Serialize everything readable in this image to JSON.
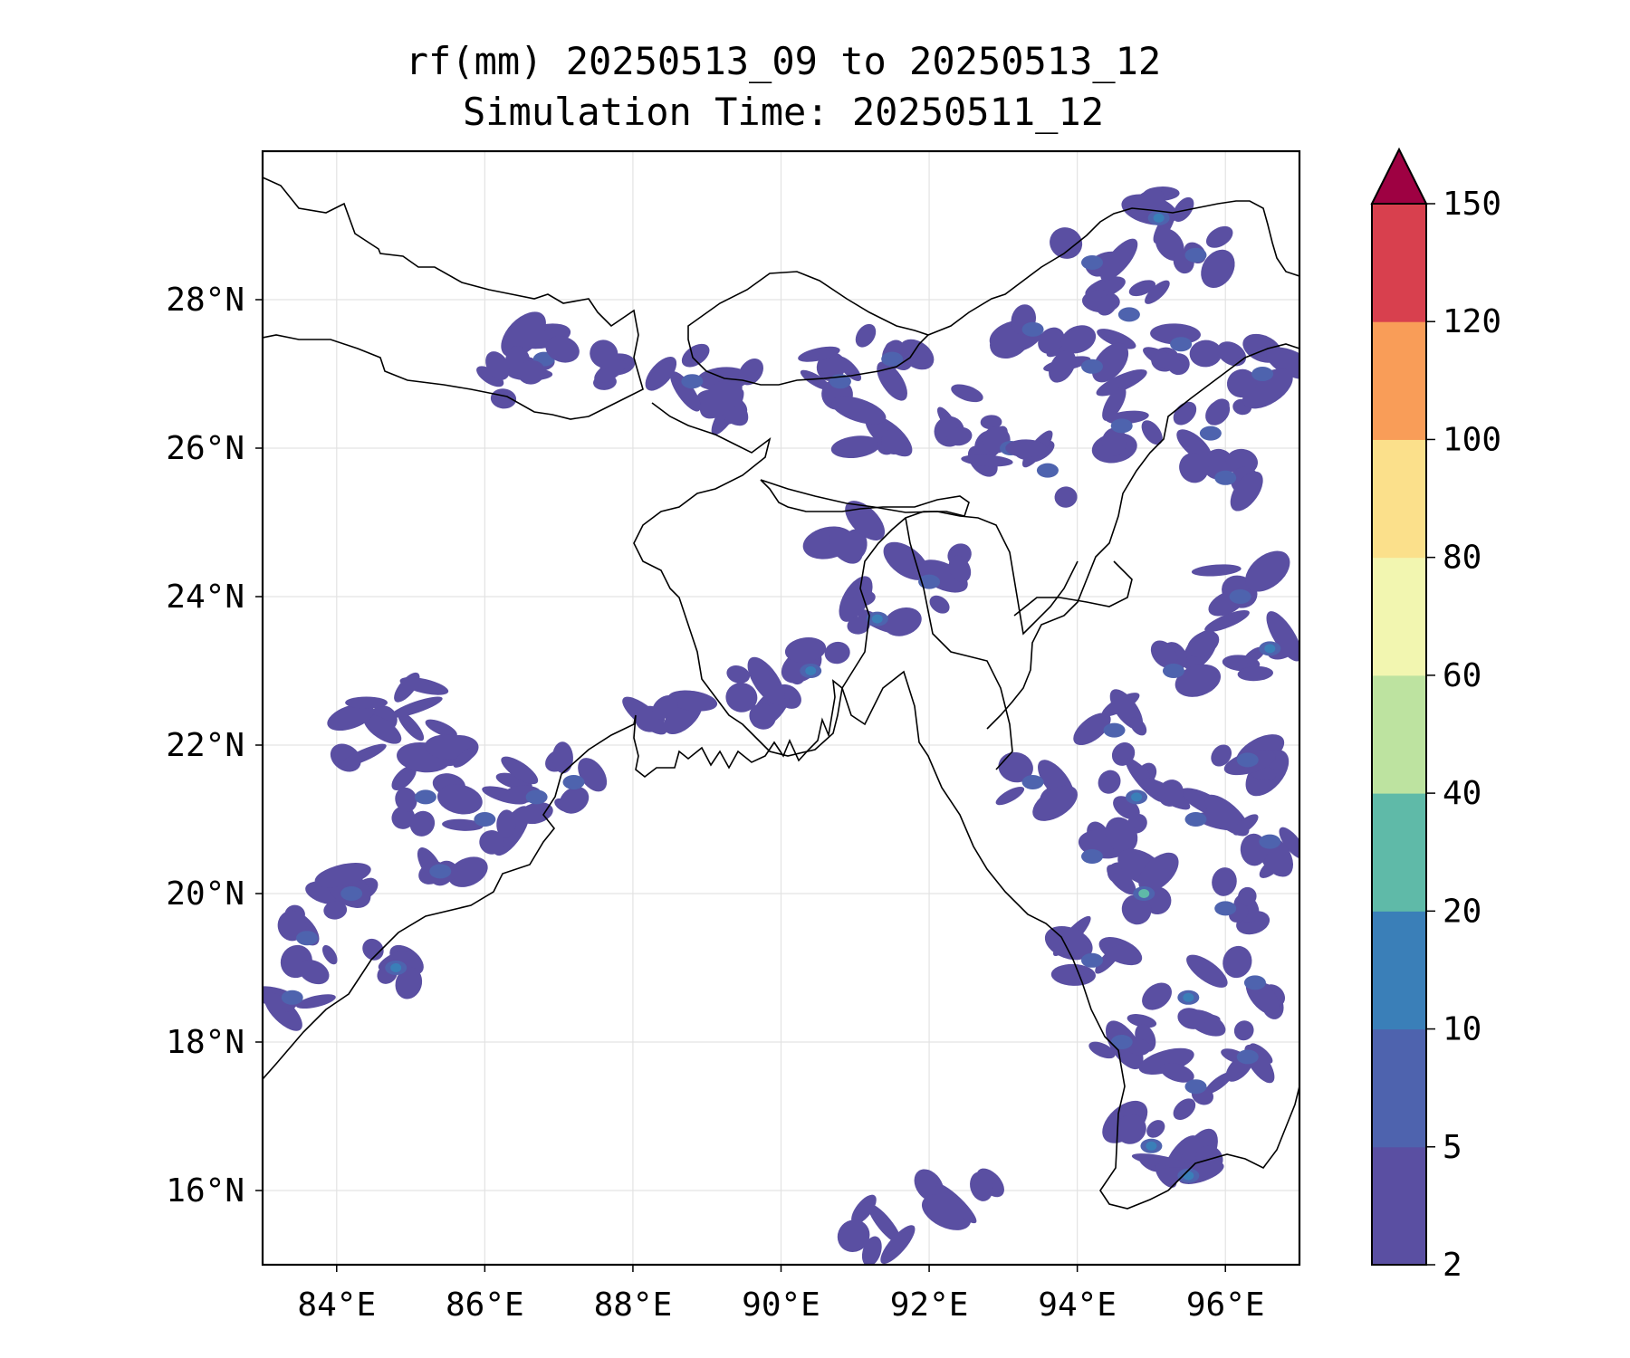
{
  "title": {
    "line1": "rf(mm) 20250513_09 to 20250513_12",
    "line2": "Simulation Time: 20250511_12"
  },
  "map": {
    "lon_range": [
      83,
      97
    ],
    "lat_range": [
      15,
      30
    ],
    "lon_ticks": [
      84,
      86,
      88,
      90,
      92,
      94,
      96
    ],
    "lon_tick_labels": [
      "84°E",
      "86°E",
      "88°E",
      "90°E",
      "92°E",
      "94°E",
      "96°E"
    ],
    "lat_ticks": [
      16,
      18,
      20,
      22,
      24,
      26,
      28
    ],
    "lat_tick_labels": [
      "16°N",
      "18°N",
      "20°N",
      "22°N",
      "24°N",
      "26°N",
      "28°N"
    ],
    "gridlines": true,
    "coastline_color": "#000000"
  },
  "colorbar": {
    "levels": [
      2,
      5,
      10,
      20,
      40,
      60,
      80,
      100,
      120,
      150
    ],
    "labels": [
      "2",
      "5",
      "10",
      "20",
      "40",
      "60",
      "80",
      "100",
      "120",
      "150"
    ],
    "colors": [
      "#5a4fa2",
      "#4e63ae",
      "#3a7fb8",
      "#5fbaa8",
      "#bde3a0",
      "#f2f6b0",
      "#fbe08b",
      "#f99d58",
      "#d8404e"
    ],
    "extend_color": "#9e0142",
    "extend": "max"
  },
  "rain_cells": [
    {
      "lon": 86.8,
      "lat": 27.2,
      "mm": 8
    },
    {
      "lon": 86.3,
      "lat": 27.0,
      "mm": 4
    },
    {
      "lon": 87.4,
      "lat": 27.0,
      "mm": 4
    },
    {
      "lon": 88.8,
      "lat": 26.9,
      "mm": 6
    },
    {
      "lon": 89.6,
      "lat": 26.7,
      "mm": 4
    },
    {
      "lon": 90.8,
      "lat": 26.9,
      "mm": 6
    },
    {
      "lon": 91.5,
      "lat": 27.2,
      "mm": 7
    },
    {
      "lon": 91.1,
      "lat": 26.2,
      "mm": 4
    },
    {
      "lon": 92.5,
      "lat": 26.4,
      "mm": 4
    },
    {
      "lon": 93.1,
      "lat": 26.0,
      "mm": 5
    },
    {
      "lon": 93.4,
      "lat": 27.6,
      "mm": 8
    },
    {
      "lon": 94.2,
      "lat": 28.5,
      "mm": 9
    },
    {
      "lon": 95.1,
      "lat": 29.1,
      "mm": 14
    },
    {
      "lon": 95.6,
      "lat": 28.6,
      "mm": 8
    },
    {
      "lon": 94.7,
      "lat": 27.8,
      "mm": 7
    },
    {
      "lon": 95.4,
      "lat": 27.4,
      "mm": 9
    },
    {
      "lon": 94.2,
      "lat": 27.1,
      "mm": 6
    },
    {
      "lon": 94.6,
      "lat": 26.3,
      "mm": 8
    },
    {
      "lon": 95.8,
      "lat": 26.2,
      "mm": 7
    },
    {
      "lon": 96.5,
      "lat": 27.0,
      "mm": 8
    },
    {
      "lon": 96.0,
      "lat": 25.6,
      "mm": 5
    },
    {
      "lon": 93.6,
      "lat": 25.7,
      "mm": 5
    },
    {
      "lon": 91.0,
      "lat": 24.8,
      "mm": 4
    },
    {
      "lon": 92.0,
      "lat": 24.2,
      "mm": 6
    },
    {
      "lon": 91.3,
      "lat": 23.7,
      "mm": 11
    },
    {
      "lon": 90.4,
      "lat": 23.0,
      "mm": 12
    },
    {
      "lon": 89.6,
      "lat": 22.7,
      "mm": 4
    },
    {
      "lon": 88.5,
      "lat": 22.6,
      "mm": 3
    },
    {
      "lon": 96.2,
      "lat": 24.0,
      "mm": 9
    },
    {
      "lon": 96.6,
      "lat": 23.3,
      "mm": 10
    },
    {
      "lon": 95.3,
      "lat": 23.0,
      "mm": 6
    },
    {
      "lon": 94.5,
      "lat": 22.2,
      "mm": 7
    },
    {
      "lon": 93.4,
      "lat": 21.5,
      "mm": 8
    },
    {
      "lon": 94.8,
      "lat": 21.3,
      "mm": 13
    },
    {
      "lon": 95.6,
      "lat": 21.0,
      "mm": 7
    },
    {
      "lon": 96.3,
      "lat": 21.8,
      "mm": 9
    },
    {
      "lon": 94.2,
      "lat": 20.5,
      "mm": 8
    },
    {
      "lon": 94.9,
      "lat": 20.0,
      "mm": 21
    },
    {
      "lon": 96.0,
      "lat": 19.8,
      "mm": 8
    },
    {
      "lon": 96.6,
      "lat": 20.7,
      "mm": 7
    },
    {
      "lon": 94.2,
      "lat": 19.1,
      "mm": 9
    },
    {
      "lon": 95.5,
      "lat": 18.6,
      "mm": 12
    },
    {
      "lon": 96.4,
      "lat": 18.8,
      "mm": 8
    },
    {
      "lon": 94.6,
      "lat": 18.0,
      "mm": 6
    },
    {
      "lon": 95.6,
      "lat": 17.4,
      "mm": 8
    },
    {
      "lon": 95.0,
      "lat": 16.6,
      "mm": 18
    },
    {
      "lon": 95.5,
      "lat": 16.2,
      "mm": 10
    },
    {
      "lon": 96.3,
      "lat": 17.8,
      "mm": 6
    },
    {
      "lon": 83.6,
      "lat": 19.4,
      "mm": 9
    },
    {
      "lon": 84.2,
      "lat": 20.0,
      "mm": 8
    },
    {
      "lon": 84.8,
      "lat": 19.0,
      "mm": 10
    },
    {
      "lon": 85.4,
      "lat": 20.3,
      "mm": 6
    },
    {
      "lon": 85.2,
      "lat": 21.3,
      "mm": 5
    },
    {
      "lon": 86.0,
      "lat": 21.0,
      "mm": 7
    },
    {
      "lon": 86.7,
      "lat": 21.3,
      "mm": 8
    },
    {
      "lon": 87.2,
      "lat": 21.5,
      "mm": 6
    },
    {
      "lon": 85.5,
      "lat": 22.0,
      "mm": 4
    },
    {
      "lon": 84.4,
      "lat": 22.1,
      "mm": 4
    },
    {
      "lon": 84.8,
      "lat": 22.6,
      "mm": 4
    },
    {
      "lon": 83.4,
      "lat": 18.6,
      "mm": 7
    },
    {
      "lon": 92.4,
      "lat": 15.9,
      "mm": 3
    },
    {
      "lon": 91.2,
      "lat": 15.5,
      "mm": 3
    }
  ]
}
